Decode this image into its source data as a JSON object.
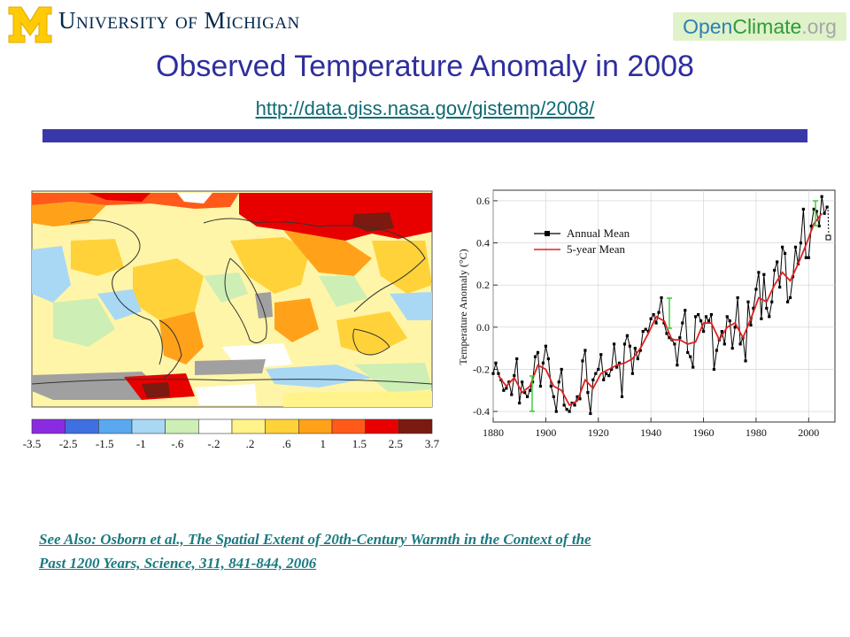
{
  "header": {
    "university_name": "University of Michigan",
    "opencliamte_logo": {
      "part1": "Open",
      "part2": "Climate",
      "part3": ".org"
    }
  },
  "slide": {
    "title": "Observed Temperature Anomaly in 2008",
    "url": "http://data.giss.nasa.gov/gistemp/2008/",
    "reference_line1": "See Also: Osborn et al., The Spatial Extent of 20th-Century Warmth in the Context of the",
    "reference_line2": "Past 1200 Years, Science, 311, 841-844, 2006"
  },
  "colors": {
    "title": "#2e2e9e",
    "rule": "#3838a8",
    "link": "#0f6b73",
    "annual": "#000000",
    "five_year": "#e02020",
    "error_bar": "#33cc33"
  },
  "map_legend": {
    "ticks": [
      "-3.5",
      "-2.5",
      "-1.5",
      "-1",
      "-.6",
      "-.2",
      ".2",
      ".6",
      "1",
      "1.5",
      "2.5",
      "3.7"
    ],
    "colors": [
      "#8a2be2",
      "#3f6fe0",
      "#5aa9f0",
      "#a9d8f5",
      "#cdeeb4",
      "#ffffff",
      "#fff38a",
      "#ffd23a",
      "#ffa21a",
      "#ff5a1a",
      "#e80000",
      "#7a1a10"
    ]
  },
  "chart_data": [
    {
      "type": "heatmap",
      "title": "",
      "description_legend_ticks": [
        "-3.5",
        "-2.5",
        "-1.5",
        "-1",
        "-.6",
        "-.2",
        ".2",
        ".6",
        "1",
        "1.5",
        "2.5",
        "3.7"
      ]
    },
    {
      "type": "line",
      "xlabel": "",
      "ylabel": "Temperature Anomaly (°C)",
      "xlim": [
        1880,
        2010
      ],
      "ylim": [
        -0.45,
        0.65
      ],
      "x_ticks": [
        "1880",
        "1900",
        "1920",
        "1940",
        "1960",
        "1980",
        "2000"
      ],
      "y_ticks": [
        "-0.4",
        "-0.2",
        "0.0",
        "0.2",
        "0.4",
        "0.6"
      ],
      "legend_position": "top-left",
      "series": [
        {
          "name": "Annual Mean",
          "x": [
            1880,
            1881,
            1882,
            1883,
            1884,
            1885,
            1886,
            1887,
            1888,
            1889,
            1890,
            1891,
            1892,
            1893,
            1894,
            1895,
            1896,
            1897,
            1898,
            1899,
            1900,
            1901,
            1902,
            1903,
            1904,
            1905,
            1906,
            1907,
            1908,
            1909,
            1910,
            1911,
            1912,
            1913,
            1914,
            1915,
            1916,
            1917,
            1918,
            1919,
            1920,
            1921,
            1922,
            1923,
            1924,
            1925,
            1926,
            1927,
            1928,
            1929,
            1930,
            1931,
            1932,
            1933,
            1934,
            1935,
            1936,
            1937,
            1938,
            1939,
            1940,
            1941,
            1942,
            1943,
            1944,
            1945,
            1946,
            1947,
            1948,
            1949,
            1950,
            1951,
            1952,
            1953,
            1954,
            1955,
            1956,
            1957,
            1958,
            1959,
            1960,
            1961,
            1962,
            1963,
            1964,
            1965,
            1966,
            1967,
            1968,
            1969,
            1970,
            1971,
            1972,
            1973,
            1974,
            1975,
            1976,
            1977,
            1978,
            1979,
            1980,
            1981,
            1982,
            1983,
            1984,
            1985,
            1986,
            1987,
            1988,
            1989,
            1990,
            1991,
            1992,
            1993,
            1994,
            1995,
            1996,
            1997,
            1998,
            1999,
            2000,
            2001,
            2002,
            2003,
            2004,
            2005,
            2006,
            2007
          ],
          "values": [
            -0.22,
            -0.17,
            -0.22,
            -0.25,
            -0.3,
            -0.29,
            -0.26,
            -0.32,
            -0.23,
            -0.15,
            -0.36,
            -0.26,
            -0.31,
            -0.33,
            -0.3,
            -0.26,
            -0.14,
            -0.12,
            -0.28,
            -0.17,
            -0.09,
            -0.15,
            -0.28,
            -0.33,
            -0.4,
            -0.26,
            -0.2,
            -0.37,
            -0.39,
            -0.4,
            -0.36,
            -0.37,
            -0.33,
            -0.34,
            -0.16,
            -0.11,
            -0.31,
            -0.41,
            -0.25,
            -0.22,
            -0.2,
            -0.13,
            -0.25,
            -0.22,
            -0.23,
            -0.2,
            -0.08,
            -0.19,
            -0.17,
            -0.33,
            -0.08,
            -0.04,
            -0.09,
            -0.22,
            -0.1,
            -0.15,
            -0.11,
            -0.02,
            -0.01,
            -0.02,
            0.04,
            0.06,
            0.02,
            0.07,
            0.14,
            0.02,
            -0.03,
            -0.05,
            -0.06,
            -0.08,
            -0.18,
            -0.05,
            0.02,
            0.08,
            -0.12,
            -0.14,
            -0.19,
            0.05,
            0.06,
            0.03,
            -0.02,
            0.05,
            0.03,
            0.06,
            -0.2,
            -0.11,
            -0.06,
            -0.02,
            -0.08,
            0.05,
            0.03,
            -0.1,
            0.0,
            0.14,
            -0.08,
            -0.05,
            -0.16,
            0.12,
            0.01,
            0.09,
            0.18,
            0.26,
            0.04,
            0.25,
            0.09,
            0.05,
            0.12,
            0.27,
            0.31,
            0.19,
            0.38,
            0.35,
            0.12,
            0.14,
            0.24,
            0.38,
            0.3,
            0.4,
            0.56,
            0.33,
            0.33,
            0.48,
            0.56,
            0.55,
            0.48,
            0.62,
            0.54,
            0.57
          ]
        },
        {
          "name": "5-year Mean",
          "x": [
            1882,
            1885,
            1888,
            1891,
            1894,
            1897,
            1900,
            1903,
            1906,
            1909,
            1912,
            1915,
            1918,
            1921,
            1924,
            1927,
            1930,
            1933,
            1936,
            1939,
            1942,
            1945,
            1948,
            1951,
            1954,
            1957,
            1960,
            1963,
            1966,
            1969,
            1972,
            1975,
            1978,
            1981,
            1984,
            1987,
            1990,
            1993,
            1996,
            1999,
            2002,
            2005
          ],
          "values": [
            -0.23,
            -0.28,
            -0.24,
            -0.31,
            -0.28,
            -0.18,
            -0.2,
            -0.28,
            -0.3,
            -0.37,
            -0.35,
            -0.25,
            -0.29,
            -0.22,
            -0.2,
            -0.18,
            -0.17,
            -0.15,
            -0.1,
            -0.03,
            0.05,
            0.03,
            -0.06,
            -0.06,
            -0.08,
            -0.07,
            0.02,
            0.02,
            -0.06,
            0.0,
            0.02,
            -0.05,
            0.04,
            0.14,
            0.12,
            0.2,
            0.26,
            0.22,
            0.3,
            0.39,
            0.49,
            0.54
          ]
        }
      ]
    }
  ]
}
